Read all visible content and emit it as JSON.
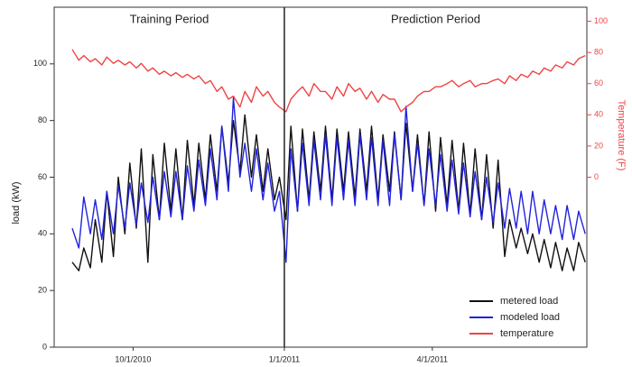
{
  "chart_data": {
    "type": "line",
    "annotations": [
      "Training Period",
      "Prediction Period"
    ],
    "vline": "2011-01-01",
    "ylabel": "load (kW)",
    "y2label": "Temperature (F)",
    "x": [
      "2010-08-25",
      "2010-08-29",
      "2010-09-01",
      "2010-09-05",
      "2010-09-08",
      "2010-09-12",
      "2010-09-15",
      "2010-09-19",
      "2010-09-22",
      "2010-09-26",
      "2010-09-29",
      "2010-10-03",
      "2010-10-06",
      "2010-10-10",
      "2010-10-13",
      "2010-10-17",
      "2010-10-20",
      "2010-10-24",
      "2010-10-27",
      "2010-10-31",
      "2010-11-03",
      "2010-11-07",
      "2010-11-10",
      "2010-11-14",
      "2010-11-17",
      "2010-11-21",
      "2010-11-24",
      "2010-11-28",
      "2010-12-01",
      "2010-12-05",
      "2010-12-08",
      "2010-12-12",
      "2010-12-15",
      "2010-12-19",
      "2010-12-22",
      "2010-12-26",
      "2010-12-29",
      "2011-01-02",
      "2011-01-05",
      "2011-01-09",
      "2011-01-12",
      "2011-01-16",
      "2011-01-19",
      "2011-01-23",
      "2011-01-26",
      "2011-01-30",
      "2011-02-02",
      "2011-02-06",
      "2011-02-09",
      "2011-02-13",
      "2011-02-16",
      "2011-02-20",
      "2011-02-23",
      "2011-02-27",
      "2011-03-02",
      "2011-03-06",
      "2011-03-09",
      "2011-03-13",
      "2011-03-16",
      "2011-03-20",
      "2011-03-23",
      "2011-03-27",
      "2011-03-30",
      "2011-04-03",
      "2011-04-06",
      "2011-04-10",
      "2011-04-13",
      "2011-04-17",
      "2011-04-20",
      "2011-04-24",
      "2011-04-27",
      "2011-05-01",
      "2011-05-04",
      "2011-05-08",
      "2011-05-11",
      "2011-05-15",
      "2011-05-18",
      "2011-05-22",
      "2011-05-25",
      "2011-05-29",
      "2011-06-01",
      "2011-06-05",
      "2011-06-08",
      "2011-06-12",
      "2011-06-15",
      "2011-06-19",
      "2011-06-22",
      "2011-06-26",
      "2011-06-29",
      "2011-07-03"
    ],
    "series": [
      {
        "name": "metered load",
        "color": "#111111",
        "values": [
          30,
          27,
          35,
          28,
          45,
          30,
          55,
          32,
          60,
          40,
          65,
          42,
          70,
          30,
          68,
          45,
          72,
          48,
          70,
          45,
          73,
          50,
          72,
          52,
          75,
          55,
          78,
          58,
          80,
          62,
          82,
          60,
          75,
          55,
          70,
          52,
          60,
          45,
          78,
          48,
          77,
          52,
          76,
          55,
          78,
          52,
          77,
          55,
          76,
          53,
          77,
          55,
          78,
          52,
          75,
          55,
          76,
          52,
          79,
          55,
          75,
          50,
          76,
          48,
          74,
          50,
          73,
          48,
          72,
          47,
          70,
          45,
          68,
          42,
          66,
          32,
          45,
          35,
          42,
          33,
          40,
          30,
          38,
          28,
          37,
          27,
          35,
          27,
          37,
          30
        ]
      },
      {
        "name": "modeled load",
        "color": "#2222dd",
        "values": [
          42,
          35,
          53,
          40,
          52,
          38,
          55,
          40,
          57,
          42,
          58,
          43,
          58,
          44,
          60,
          45,
          62,
          46,
          62,
          45,
          64,
          48,
          66,
          50,
          70,
          52,
          78,
          55,
          88,
          60,
          72,
          55,
          70,
          52,
          65,
          48,
          55,
          30,
          70,
          48,
          72,
          50,
          73,
          52,
          75,
          50,
          74,
          52,
          73,
          50,
          75,
          52,
          74,
          50,
          73,
          50,
          75,
          52,
          85,
          55,
          72,
          50,
          70,
          50,
          68,
          48,
          66,
          47,
          65,
          46,
          62,
          45,
          60,
          44,
          58,
          42,
          56,
          42,
          55,
          40,
          55,
          40,
          52,
          40,
          50,
          38,
          50,
          38,
          48,
          40
        ]
      },
      {
        "name": "temperature",
        "color": "#ee4444",
        "axis": "y2",
        "values": [
          82,
          75,
          78,
          74,
          76,
          72,
          77,
          73,
          75,
          72,
          74,
          70,
          73,
          68,
          70,
          66,
          68,
          65,
          67,
          64,
          66,
          63,
          65,
          60,
          62,
          55,
          58,
          50,
          52,
          45,
          55,
          48,
          58,
          52,
          55,
          48,
          45,
          42,
          50,
          55,
          58,
          52,
          60,
          55,
          55,
          50,
          58,
          52,
          60,
          55,
          57,
          50,
          55,
          48,
          53,
          50,
          50,
          42,
          45,
          48,
          52,
          55,
          55,
          58,
          58,
          60,
          62,
          58,
          60,
          62,
          58,
          60,
          60,
          62,
          63,
          60,
          65,
          62,
          66,
          64,
          68,
          66,
          70,
          68,
          72,
          70,
          74,
          72,
          76,
          78
        ]
      }
    ],
    "xlim": [
      "2010-08-14",
      "2011-07-04"
    ],
    "xticks": [
      {
        "value": "2010-10-01",
        "label": "10/1/2010"
      },
      {
        "value": "2011-01-01",
        "label": "1/1/2011"
      },
      {
        "value": "2011-04-01",
        "label": "4/1/2011"
      }
    ],
    "ylim": [
      0,
      120
    ],
    "yticks": [
      0,
      20,
      40,
      60,
      80,
      100
    ],
    "y2lim": [
      -109,
      109
    ],
    "y2ticks": [
      0,
      20,
      40,
      60,
      80,
      100
    ],
    "legend": "lower right"
  }
}
